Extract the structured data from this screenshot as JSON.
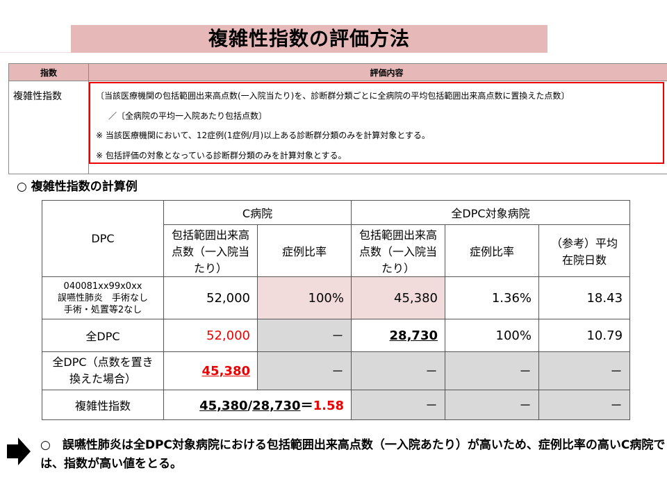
{
  "title": "複雑性指数の評価方法",
  "definition": {
    "header_col1": "指数",
    "header_col2": "評価内容",
    "name": "複雑性指数",
    "lines": [
      "〔当該医療機関の包括範囲出来高点数(一入院当たり)を、診断群分類ごとに全病院の平均包括範囲出来高点数に置換えた点数〕",
      "／〔全病院の平均一入院あたり包括点数〕",
      "※ 当該医療機関において、12症例(1症例/月)以上ある診断群分類のみを計算対象とする。",
      "※ 包括評価の対象となっている診断群分類のみを計算対象とする。"
    ]
  },
  "section_heading": "○ 複雑性指数の計算例",
  "calc_table": {
    "col_dpc": "DPC",
    "group_c": "C病院",
    "group_all": "全DPC対象病院",
    "h_c_points": "包括範囲出来高点数（一入院当たり）",
    "h_c_ratio": "症例比率",
    "h_all_points": "包括範囲出来高点数（一入院当たり）",
    "h_all_ratio": "症例比率",
    "h_all_days": "（参考）平均在院日数",
    "row1": {
      "label_code": "040081xx99x0xx",
      "label_name": "誤嚥性肺炎　手術なし",
      "label_sub": "手術・処置等2なし",
      "c_points": "52,000",
      "c_ratio": "100%",
      "all_points": "45,380",
      "all_ratio": "1.36%",
      "all_days": "18.43"
    },
    "row2": {
      "label": "全DPC",
      "c_points": "52,000",
      "c_ratio": "－",
      "all_points": "28,730",
      "all_ratio": "100%",
      "all_days": "10.79"
    },
    "row3": {
      "label": "全DPC（点数を置き換えた場合）",
      "c_points": "45,380",
      "c_ratio": "－",
      "all_points": "－",
      "all_ratio": "－",
      "all_days": "－"
    },
    "row4": {
      "label": "複雑性指数",
      "formula_a": "45,380",
      "formula_slash": "/",
      "formula_b": "28,730",
      "formula_eq": "＝",
      "formula_result": "1.58",
      "c_ratio": "－",
      "all_points": "－",
      "all_ratio": "－",
      "all_days": "－"
    }
  },
  "conclusion": "○　誤嚥性肺炎は全DPC対象病院における包括範囲出来高点数（一入院あたり）が高いため、症例比率の高いC病院では、指数が高い値をとる。",
  "colors": {
    "title_bg": "#e6b8b8",
    "pink_cell": "#f2dcdb",
    "gray_cell": "#d9d9d9",
    "accent_red": "#e00000"
  }
}
